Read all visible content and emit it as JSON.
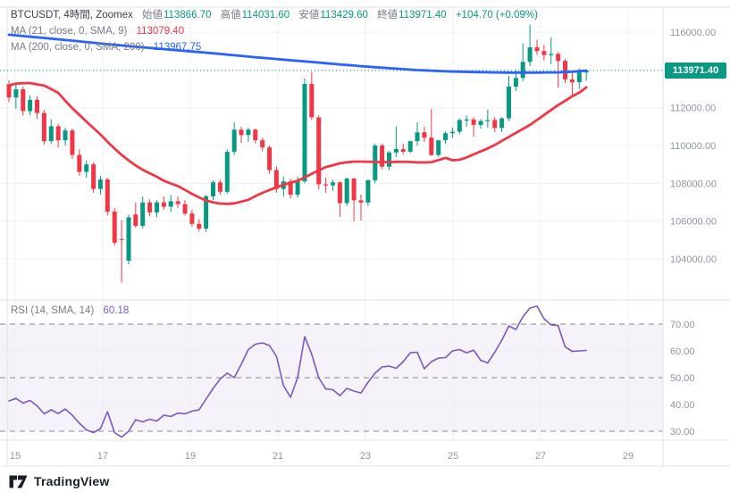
{
  "header": {
    "symbol_title": "BTCUSDT, 4時間, Zoomex",
    "open_label": "始値",
    "open_value": "113866.70",
    "high_label": "高値",
    "high_value": "114031.60",
    "low_label": "安値",
    "low_value": "113429.60",
    "close_label": "終値",
    "close_value": "113971.40",
    "change_text": "+104.70 (+0.09%)",
    "ma_fast_label": "MA (21, close, 0, SMA, 9)",
    "ma_fast_value": "113079.40",
    "ma_slow_label": "MA (200, close, 0, SMA, 200)",
    "ma_slow_value": "113967.75"
  },
  "rsi_pane": {
    "label": "RSI (14, SMA, 14)",
    "value": "60.18"
  },
  "price_axis": {
    "visible_tick_labels": [
      "116000.00",
      "112000.00",
      "110000.00",
      "108000.00",
      "106000.00",
      "104000.00"
    ],
    "visible_tick_values": [
      116000,
      112000,
      110000,
      108000,
      106000,
      104000
    ],
    "grid_values": [
      116000,
      114000,
      112000,
      110000,
      108000,
      106000,
      104000
    ],
    "last_price_label": "113971.40",
    "last_price_value": 113971.4
  },
  "rsi_axis": {
    "tick_labels": [
      "70.00",
      "60.00",
      "50.00",
      "40.00",
      "30.00"
    ],
    "tick_values": [
      70,
      60,
      50,
      40,
      30
    ],
    "dashed_levels": [
      70,
      50,
      30
    ],
    "solid_grid_levels": [
      60,
      40
    ],
    "band": [
      30,
      70
    ]
  },
  "time_axis": {
    "labels": [
      "15",
      "17",
      "19",
      "21",
      "23",
      "25",
      "27",
      "29"
    ],
    "days": [
      15,
      17,
      19,
      21,
      23,
      25,
      27,
      29
    ]
  },
  "footer": {
    "logo_text": "TradingView"
  },
  "colors": {
    "up": "#089981",
    "down": "#F23645",
    "ma_fast": "#F23645",
    "ma_slow": "#2962FF",
    "rsi": "#7E57C2",
    "rsi_band_fill": "#7E57C2",
    "price_label_bg": "#089981",
    "price_label_text": "#FFFFFF",
    "last_price_line": "#089981",
    "axis_text": "#9196A1",
    "legend_text": "#787B86",
    "symbol_text": "#3C4049",
    "grid": "#EEF0F4",
    "frame": "#E0E3EB",
    "dashed_line": "#73767E",
    "logo": "#1B2028"
  },
  "chart_data": {
    "type": "candlestick",
    "symbol": "BTCUSDT",
    "interval": "4時間",
    "exchange": "Zoomex",
    "current_bar": {
      "open": 113866.7,
      "high": 114031.6,
      "low": 113429.6,
      "close": 113971.4,
      "change": 104.7,
      "change_pct": 0.09
    },
    "indicators": {
      "ma_fast": {
        "name": "MA(21, close, 0, SMA, 9)",
        "last": 113079.4
      },
      "ma_slow": {
        "name": "MA(200, close, 0, SMA, 200)",
        "last": 113967.75
      },
      "rsi": {
        "name": "RSI(14, SMA, 14)",
        "last": 60.18
      }
    },
    "x_day_ticks": [
      15,
      17,
      19,
      21,
      23,
      25,
      27,
      29
    ],
    "price_range_visible": [
      102000,
      117300
    ],
    "candles_ohlc": [
      [
        113250,
        113450,
        112300,
        112550
      ],
      [
        112550,
        113260,
        111950,
        112980
      ],
      [
        112980,
        113120,
        111580,
        111820
      ],
      [
        111820,
        112650,
        111600,
        112420
      ],
      [
        112420,
        112600,
        111400,
        111720
      ],
      [
        111720,
        111900,
        110050,
        110230
      ],
      [
        110230,
        111400,
        110100,
        111020
      ],
      [
        111020,
        111150,
        109900,
        110280
      ],
      [
        110280,
        110950,
        110000,
        110800
      ],
      [
        110800,
        110900,
        109300,
        109500
      ],
      [
        109500,
        109800,
        108400,
        108600
      ],
      [
        108600,
        109200,
        108300,
        109000
      ],
      [
        109000,
        109100,
        107500,
        107700
      ],
      [
        107700,
        108400,
        107400,
        108200
      ],
      [
        108200,
        108300,
        106300,
        106500
      ],
      [
        106500,
        106700,
        104700,
        104850
      ],
      [
        105050,
        106050,
        102740,
        105000
      ],
      [
        103900,
        106350,
        103700,
        106200
      ],
      [
        106350,
        106990,
        105640,
        105750
      ],
      [
        105750,
        107300,
        105600,
        106990
      ],
      [
        106990,
        107150,
        106250,
        106460
      ],
      [
        106460,
        107100,
        106200,
        106990
      ],
      [
        106990,
        107300,
        106600,
        106760
      ],
      [
        106760,
        107380,
        106500,
        107050
      ],
      [
        107050,
        107300,
        106700,
        106900
      ],
      [
        106900,
        107100,
        106300,
        106400
      ],
      [
        106400,
        106600,
        105700,
        105850
      ],
      [
        105850,
        106100,
        105450,
        105600
      ],
      [
        105600,
        107400,
        105420,
        107310
      ],
      [
        107310,
        108150,
        107100,
        108050
      ],
      [
        108050,
        108200,
        107400,
        107550
      ],
      [
        107550,
        109800,
        107450,
        109670
      ],
      [
        109670,
        111230,
        109500,
        110840
      ],
      [
        110840,
        111000,
        110140,
        110550
      ],
      [
        110550,
        110940,
        110200,
        110840
      ],
      [
        110840,
        110900,
        110100,
        110280
      ],
      [
        110280,
        110400,
        109700,
        109900
      ],
      [
        109900,
        110000,
        108500,
        108700
      ],
      [
        108700,
        108900,
        107500,
        107700
      ],
      [
        107700,
        108340,
        107300,
        108100
      ],
      [
        108100,
        108250,
        107200,
        107400
      ],
      [
        107400,
        108350,
        107250,
        108100
      ],
      [
        108100,
        113550,
        108000,
        113260
      ],
      [
        113260,
        113890,
        111350,
        111490
      ],
      [
        111490,
        111600,
        107690,
        107950
      ],
      [
        107950,
        108300,
        107500,
        107890
      ],
      [
        107890,
        108200,
        107600,
        108050
      ],
      [
        108050,
        108100,
        106220,
        106950
      ],
      [
        106950,
        108300,
        106800,
        108250
      ],
      [
        108250,
        108300,
        105990,
        107100
      ],
      [
        107100,
        107400,
        106030,
        106980
      ],
      [
        106980,
        108200,
        106800,
        108160
      ],
      [
        108160,
        110090,
        108000,
        110000
      ],
      [
        110000,
        110100,
        108750,
        108880
      ],
      [
        108880,
        109700,
        108700,
        109630
      ],
      [
        109630,
        111010,
        109400,
        109810
      ],
      [
        109810,
        110100,
        109550,
        109670
      ],
      [
        109670,
        110250,
        109600,
        110230
      ],
      [
        110230,
        111230,
        110000,
        110700
      ],
      [
        110700,
        111000,
        110200,
        110420
      ],
      [
        110420,
        111950,
        109440,
        109500
      ],
      [
        109500,
        110300,
        109400,
        110280
      ],
      [
        110280,
        110750,
        110100,
        110650
      ],
      [
        110650,
        110950,
        110400,
        110730
      ],
      [
        110730,
        111420,
        110600,
        111350
      ],
      [
        111350,
        111600,
        111000,
        111380
      ],
      [
        111380,
        111500,
        110470,
        111090
      ],
      [
        111090,
        111400,
        110900,
        111300
      ],
      [
        111300,
        111900,
        110950,
        111350
      ],
      [
        111350,
        111500,
        110700,
        110930
      ],
      [
        110930,
        111500,
        110700,
        111440
      ],
      [
        111440,
        113690,
        111300,
        113120
      ],
      [
        113120,
        114000,
        112900,
        113580
      ],
      [
        113580,
        115420,
        113400,
        114430
      ],
      [
        114430,
        116400,
        114200,
        115200
      ],
      [
        115200,
        115600,
        114800,
        115000
      ],
      [
        115000,
        115340,
        114500,
        114790
      ],
      [
        114790,
        115730,
        114310,
        114850
      ],
      [
        114850,
        114950,
        113060,
        114480
      ],
      [
        114480,
        114600,
        113300,
        113500
      ],
      [
        113500,
        113940,
        112560,
        113350
      ],
      [
        113350,
        114080,
        112980,
        113870
      ],
      [
        113866.7,
        114031.6,
        113429.6,
        113971.4
      ]
    ],
    "ma_fast_series": [
      113175,
      113280,
      113300,
      113310,
      113240,
      113170,
      112990,
      112790,
      112380,
      111975,
      111620,
      111270,
      110925,
      110585,
      110205,
      109840,
      109505,
      109210,
      108945,
      108720,
      108530,
      108350,
      108130,
      107990,
      107855,
      107650,
      107440,
      107255,
      107085,
      106995,
      106925,
      106910,
      106935,
      107030,
      107125,
      107325,
      107495,
      107645,
      107790,
      107920,
      108035,
      108135,
      108310,
      108495,
      108680,
      108860,
      108955,
      109060,
      109110,
      109150,
      109150,
      109145,
      109125,
      109125,
      109130,
      109135,
      109145,
      109130,
      109105,
      109105,
      109118,
      109230,
      109348,
      109220,
      109250,
      109370,
      109530,
      109690,
      109845,
      110030,
      110245,
      110460,
      110670,
      110880,
      111090,
      111350,
      111615,
      111880,
      112140,
      112370,
      112610,
      112800,
      113079.4
    ],
    "ma_slow_series": [
      115866,
      115832,
      115798,
      115764,
      115730,
      115695,
      115660,
      115625,
      115590,
      115553,
      115515,
      115478,
      115440,
      115404,
      115368,
      115334,
      115300,
      115268,
      115235,
      115203,
      115170,
      115138,
      115105,
      115073,
      115040,
      115010,
      114980,
      114948,
      114915,
      114883,
      114850,
      114815,
      114780,
      114745,
      114710,
      114678,
      114645,
      114613,
      114580,
      114548,
      114515,
      114485,
      114455,
      114423,
      114390,
      114358,
      114325,
      114294,
      114263,
      114234,
      114205,
      114176,
      114147,
      114121,
      114095,
      114070,
      114045,
      114020,
      113995,
      113981,
      113966,
      113948,
      113930,
      113920,
      113910,
      113900,
      113890,
      113884,
      113878,
      113873,
      113868,
      113864,
      113860,
      113862,
      113863,
      113865,
      113867,
      113870,
      113872,
      113889,
      113905,
      113937,
      113968
    ],
    "rsi_series": [
      41.3,
      42.3,
      40.5,
      41.5,
      39.5,
      36.5,
      38.0,
      36.6,
      38.3,
      36.0,
      33.0,
      30.5,
      29.5,
      31.0,
      37.3,
      29.5,
      27.8,
      30.0,
      34.3,
      33.5,
      34.5,
      33.8,
      36.0,
      35.5,
      36.8,
      36.5,
      37.5,
      38.0,
      42.0,
      46.0,
      49.5,
      51.7,
      50.0,
      55.0,
      60.5,
      62.5,
      63.0,
      62.0,
      58.0,
      47.0,
      42.7,
      50.0,
      65.3,
      58.8,
      50.0,
      45.8,
      45.5,
      43.3,
      46.0,
      45.0,
      44.3,
      48.3,
      51.7,
      54.0,
      54.3,
      53.5,
      56.0,
      59.3,
      59.5,
      53.3,
      56.0,
      57.3,
      57.5,
      60.0,
      60.5,
      59.3,
      60.3,
      56.5,
      55.5,
      59.5,
      64.0,
      69.3,
      68.0,
      72.7,
      76.0,
      76.7,
      72.0,
      69.7,
      69.5,
      61.5,
      59.8,
      60.0,
      60.18
    ]
  }
}
